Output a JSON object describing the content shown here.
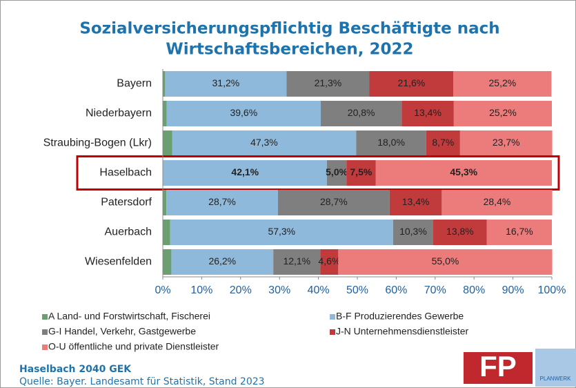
{
  "chart_data": {
    "type": "stacked_barh",
    "title": [
      "Sozialversicherungspflichtig Beschäftigte nach",
      "Wirtschaftsbereichen, 2022"
    ],
    "categories": [
      "Bayern",
      "Niederbayern",
      "Straubing-Bogen (Lkr)",
      "Haselbach",
      "Patersdorf",
      "Auerbach",
      "Wiesenfelden"
    ],
    "highlight_index": 3,
    "series": [
      {
        "name": "A Land- und Forstwirtschaft, Fischerei",
        "color": "#6b9e70",
        "values": [
          0.6,
          1.0,
          2.4,
          0.1,
          0.9,
          1.9,
          2.2
        ],
        "value_labels": [
          "0,6%",
          "1,0%",
          "2,4%",
          null,
          "0,9%",
          "1,9%",
          "2,2%"
        ]
      },
      {
        "name": "B-F Produzierendes Gewerbe",
        "color": "#8fb9da",
        "values": [
          31.2,
          39.6,
          47.3,
          42.1,
          28.7,
          57.3,
          26.2
        ],
        "value_labels": [
          "31,2%",
          "39,6%",
          "47,3%",
          "42,1%",
          "28,7%",
          "57,3%",
          "26,2%"
        ]
      },
      {
        "name": "G-I Handel, Verkehr, Gastgewerbe",
        "color": "#7f7f7f",
        "values": [
          21.3,
          20.8,
          18.0,
          5.0,
          28.7,
          10.3,
          12.1
        ],
        "value_labels": [
          "21,3%",
          "20,8%",
          "18,0%",
          "5,0%",
          "28,7%",
          "10,3%",
          "12,1%"
        ]
      },
      {
        "name": "J-N Unternehmensdienstleister",
        "color": "#c13a3c",
        "values": [
          21.6,
          13.4,
          8.7,
          7.5,
          13.4,
          13.8,
          4.6
        ],
        "value_labels": [
          "21,6%",
          "13,4%",
          "8,7%",
          "7,5%",
          "13,4%",
          "13,8%",
          "4,6%"
        ]
      },
      {
        "name": "O-U öffentliche und private Dienstleister",
        "color": "#ec7b7b",
        "values": [
          25.2,
          25.2,
          23.7,
          45.3,
          28.4,
          16.7,
          55.0
        ],
        "value_labels": [
          "25,2%",
          "25,2%",
          "23,7%",
          "45,3%",
          "28,4%",
          "16,7%",
          "55,0%"
        ]
      }
    ],
    "xlim": [
      0,
      100
    ],
    "xticks": [
      {
        "value": 0,
        "label": "0%"
      },
      {
        "value": 10,
        "label": "10%"
      },
      {
        "value": 20,
        "label": "20%"
      },
      {
        "value": 30,
        "label": "30%"
      },
      {
        "value": 40,
        "label": "40%"
      },
      {
        "value": 50,
        "label": "50%"
      },
      {
        "value": 60,
        "label": "60%"
      },
      {
        "value": 70,
        "label": "70%"
      },
      {
        "value": 80,
        "label": "80%"
      },
      {
        "value": 90,
        "label": "90%"
      },
      {
        "value": 100,
        "label": "100%"
      }
    ],
    "footer": [
      "Haselbach 2040 GEK",
      "Quelle: Bayer. Landesamt für Statistik, Stand 2023"
    ],
    "logo": {
      "mark": "FP",
      "name": "PLANWERK"
    }
  }
}
